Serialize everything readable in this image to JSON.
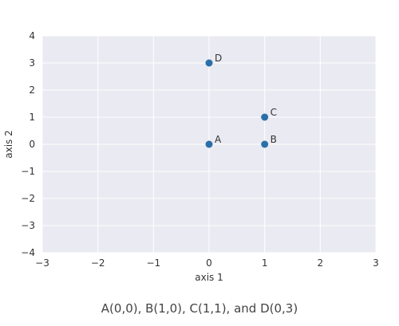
{
  "chart_data": {
    "type": "scatter",
    "title": "",
    "xlabel": "axis 1",
    "ylabel": "axis 2",
    "xlim": [
      -3,
      3
    ],
    "ylim": [
      -4,
      4
    ],
    "xticks": [
      -3,
      -2,
      -1,
      0,
      1,
      2,
      3
    ],
    "yticks": [
      -4,
      -3,
      -2,
      -1,
      0,
      1,
      2,
      3,
      4
    ],
    "xtick_labels": [
      "−3",
      "−2",
      "−1",
      "0",
      "1",
      "2",
      "3"
    ],
    "ytick_labels": [
      "−4",
      "−3",
      "−2",
      "−1",
      "0",
      "1",
      "2",
      "3",
      "4"
    ],
    "grid": true,
    "point_color": "#2a6fa8",
    "background_color": "#eaeaf2",
    "points": [
      {
        "label": "A",
        "x": 0,
        "y": 0
      },
      {
        "label": "B",
        "x": 1,
        "y": 0
      },
      {
        "label": "C",
        "x": 1,
        "y": 1
      },
      {
        "label": "D",
        "x": 0,
        "y": 3
      }
    ]
  },
  "caption": "A(0,0), B(1,0), C(1,1), and D(0,3)"
}
